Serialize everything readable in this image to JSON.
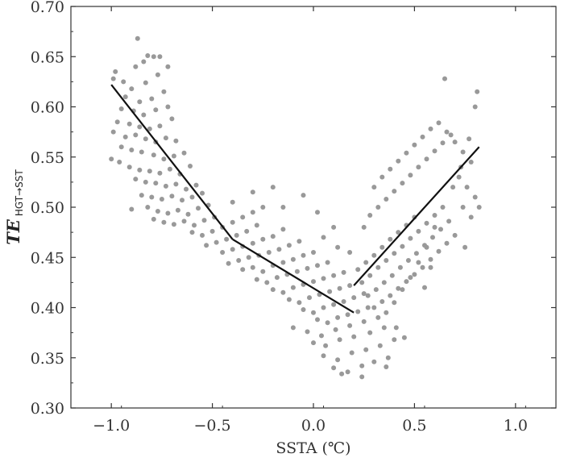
{
  "chart_data": {
    "type": "scatter",
    "title": "",
    "xlabel": "SSTA (℃)",
    "ylabel_main": "TE",
    "ylabel_sub": "HGT→SST",
    "xlim": [
      -1.2,
      1.2
    ],
    "ylim": [
      0.3,
      0.7
    ],
    "x_ticks": [
      -1.0,
      -0.5,
      0.0,
      0.5,
      1.0
    ],
    "x_tick_labels": [
      "−1.0",
      "−0.5",
      "0.0",
      "0.5",
      "1.0"
    ],
    "y_ticks": [
      0.3,
      0.35,
      0.4,
      0.45,
      0.5,
      0.55,
      0.6,
      0.65,
      0.7
    ],
    "y_tick_labels": [
      "0.30",
      "0.35",
      "0.40",
      "0.45",
      "0.50",
      "0.55",
      "0.60",
      "0.65",
      "0.70"
    ],
    "grid": false,
    "point_color": "#999999",
    "line_color": "#111111",
    "fit_segments": [
      {
        "x": [
          -1.0,
          -0.4
        ],
        "y": [
          0.622,
          0.468
        ]
      },
      {
        "x": [
          -0.4,
          0.2
        ],
        "y": [
          0.468,
          0.395
        ]
      },
      {
        "x": [
          0.2,
          0.82
        ],
        "y": [
          0.422,
          0.56
        ]
      }
    ],
    "points": [
      [
        -0.87,
        0.668
      ],
      [
        -0.82,
        0.651
      ],
      [
        -0.79,
        0.65
      ],
      [
        -0.76,
        0.65
      ],
      [
        -0.84,
        0.645
      ],
      [
        -0.88,
        0.64
      ],
      [
        -0.98,
        0.635
      ],
      [
        -0.72,
        0.64
      ],
      [
        -0.94,
        0.625
      ],
      [
        -0.99,
        0.628
      ],
      [
        -0.9,
        0.618
      ],
      [
        -0.83,
        0.624
      ],
      [
        -0.77,
        0.632
      ],
      [
        -0.74,
        0.615
      ],
      [
        -0.93,
        0.61
      ],
      [
        -0.86,
        0.605
      ],
      [
        -0.8,
        0.608
      ],
      [
        -0.95,
        0.598
      ],
      [
        -0.89,
        0.596
      ],
      [
        -0.84,
        0.592
      ],
      [
        -0.78,
        0.597
      ],
      [
        -0.72,
        0.6
      ],
      [
        -0.97,
        0.585
      ],
      [
        -0.91,
        0.583
      ],
      [
        -0.86,
        0.58
      ],
      [
        -0.81,
        0.578
      ],
      [
        -0.76,
        0.581
      ],
      [
        -0.7,
        0.588
      ],
      [
        -0.99,
        0.575
      ],
      [
        -0.93,
        0.57
      ],
      [
        -0.88,
        0.572
      ],
      [
        -0.83,
        0.568
      ],
      [
        -0.78,
        0.565
      ],
      [
        -0.73,
        0.569
      ],
      [
        -0.68,
        0.566
      ],
      [
        -0.95,
        0.56
      ],
      [
        -0.9,
        0.557
      ],
      [
        -0.85,
        0.555
      ],
      [
        -0.79,
        0.552
      ],
      [
        -0.74,
        0.548
      ],
      [
        -0.69,
        0.551
      ],
      [
        -0.64,
        0.554
      ],
      [
        -1.0,
        0.548
      ],
      [
        -0.96,
        0.545
      ],
      [
        -0.91,
        0.54
      ],
      [
        -0.86,
        0.537
      ],
      [
        -0.81,
        0.536
      ],
      [
        -0.76,
        0.534
      ],
      [
        -0.71,
        0.538
      ],
      [
        -0.66,
        0.533
      ],
      [
        -0.61,
        0.541
      ],
      [
        -0.88,
        0.528
      ],
      [
        -0.83,
        0.525
      ],
      [
        -0.78,
        0.524
      ],
      [
        -0.73,
        0.521
      ],
      [
        -0.68,
        0.523
      ],
      [
        -0.63,
        0.518
      ],
      [
        -0.58,
        0.522
      ],
      [
        -0.85,
        0.512
      ],
      [
        -0.8,
        0.51
      ],
      [
        -0.75,
        0.508
      ],
      [
        -0.7,
        0.511
      ],
      [
        -0.65,
        0.507
      ],
      [
        -0.6,
        0.51
      ],
      [
        -0.55,
        0.514
      ],
      [
        -0.9,
        0.498
      ],
      [
        -0.82,
        0.5
      ],
      [
        -0.77,
        0.496
      ],
      [
        -0.72,
        0.494
      ],
      [
        -0.67,
        0.497
      ],
      [
        -0.62,
        0.493
      ],
      [
        -0.57,
        0.499
      ],
      [
        -0.52,
        0.502
      ],
      [
        -0.79,
        0.488
      ],
      [
        -0.74,
        0.485
      ],
      [
        -0.69,
        0.483
      ],
      [
        -0.64,
        0.486
      ],
      [
        -0.59,
        0.482
      ],
      [
        -0.54,
        0.487
      ],
      [
        -0.49,
        0.49
      ],
      [
        -0.6,
        0.475
      ],
      [
        -0.55,
        0.472
      ],
      [
        -0.5,
        0.476
      ],
      [
        -0.45,
        0.48
      ],
      [
        -0.4,
        0.485
      ],
      [
        -0.35,
        0.49
      ],
      [
        -0.3,
        0.495
      ],
      [
        -0.53,
        0.462
      ],
      [
        -0.48,
        0.465
      ],
      [
        -0.43,
        0.468
      ],
      [
        -0.38,
        0.472
      ],
      [
        -0.33,
        0.476
      ],
      [
        -0.28,
        0.482
      ],
      [
        -0.25,
        0.5
      ],
      [
        -0.45,
        0.455
      ],
      [
        -0.4,
        0.458
      ],
      [
        -0.35,
        0.461
      ],
      [
        -0.3,
        0.464
      ],
      [
        -0.25,
        0.468
      ],
      [
        -0.2,
        0.471
      ],
      [
        -0.15,
        0.478
      ],
      [
        -0.42,
        0.444
      ],
      [
        -0.37,
        0.447
      ],
      [
        -0.32,
        0.45
      ],
      [
        -0.27,
        0.452
      ],
      [
        -0.22,
        0.455
      ],
      [
        -0.17,
        0.458
      ],
      [
        -0.12,
        0.462
      ],
      [
        -0.07,
        0.466
      ],
      [
        -0.35,
        0.438
      ],
      [
        -0.3,
        0.44
      ],
      [
        -0.25,
        0.436
      ],
      [
        -0.2,
        0.442
      ],
      [
        -0.15,
        0.445
      ],
      [
        -0.1,
        0.448
      ],
      [
        -0.05,
        0.452
      ],
      [
        0.0,
        0.455
      ],
      [
        -0.28,
        0.428
      ],
      [
        -0.23,
        0.425
      ],
      [
        -0.18,
        0.43
      ],
      [
        -0.13,
        0.433
      ],
      [
        -0.08,
        0.436
      ],
      [
        -0.03,
        0.439
      ],
      [
        0.02,
        0.442
      ],
      [
        0.07,
        0.445
      ],
      [
        -0.2,
        0.418
      ],
      [
        -0.15,
        0.415
      ],
      [
        -0.1,
        0.42
      ],
      [
        -0.05,
        0.423
      ],
      [
        0.0,
        0.426
      ],
      [
        0.05,
        0.429
      ],
      [
        0.1,
        0.432
      ],
      [
        0.15,
        0.435
      ],
      [
        -0.12,
        0.408
      ],
      [
        -0.07,
        0.405
      ],
      [
        -0.02,
        0.41
      ],
      [
        0.03,
        0.413
      ],
      [
        0.08,
        0.416
      ],
      [
        0.13,
        0.419
      ],
      [
        0.18,
        0.422
      ],
      [
        -0.05,
        0.398
      ],
      [
        0.0,
        0.395
      ],
      [
        0.05,
        0.4
      ],
      [
        0.1,
        0.403
      ],
      [
        0.15,
        0.406
      ],
      [
        0.2,
        0.41
      ],
      [
        0.25,
        0.414
      ],
      [
        0.02,
        0.388
      ],
      [
        0.07,
        0.385
      ],
      [
        0.12,
        0.39
      ],
      [
        0.17,
        0.393
      ],
      [
        0.22,
        0.396
      ],
      [
        0.27,
        0.4
      ],
      [
        -0.1,
        0.38
      ],
      [
        -0.03,
        0.376
      ],
      [
        0.04,
        0.372
      ],
      [
        0.11,
        0.378
      ],
      [
        0.18,
        0.382
      ],
      [
        0.25,
        0.386
      ],
      [
        0.32,
        0.39
      ],
      [
        0.0,
        0.365
      ],
      [
        0.06,
        0.362
      ],
      [
        0.13,
        0.368
      ],
      [
        0.2,
        0.371
      ],
      [
        0.28,
        0.375
      ],
      [
        0.35,
        0.38
      ],
      [
        0.05,
        0.352
      ],
      [
        0.12,
        0.348
      ],
      [
        0.19,
        0.355
      ],
      [
        0.26,
        0.358
      ],
      [
        0.33,
        0.362
      ],
      [
        0.4,
        0.368
      ],
      [
        0.1,
        0.34
      ],
      [
        0.17,
        0.336
      ],
      [
        0.24,
        0.342
      ],
      [
        0.3,
        0.346
      ],
      [
        0.37,
        0.35
      ],
      [
        0.24,
        0.331
      ],
      [
        0.36,
        0.341
      ],
      [
        0.14,
        0.334
      ],
      [
        0.05,
        0.47
      ],
      [
        0.12,
        0.46
      ],
      [
        0.18,
        0.455
      ],
      [
        0.1,
        0.48
      ],
      [
        0.02,
        0.495
      ],
      [
        -0.05,
        0.512
      ],
      [
        -0.15,
        0.5
      ],
      [
        -0.3,
        0.515
      ],
      [
        -0.4,
        0.505
      ],
      [
        -0.2,
        0.52
      ],
      [
        0.22,
        0.438
      ],
      [
        0.26,
        0.445
      ],
      [
        0.3,
        0.452
      ],
      [
        0.34,
        0.46
      ],
      [
        0.38,
        0.468
      ],
      [
        0.42,
        0.475
      ],
      [
        0.46,
        0.482
      ],
      [
        0.5,
        0.49
      ],
      [
        0.24,
        0.425
      ],
      [
        0.28,
        0.432
      ],
      [
        0.32,
        0.44
      ],
      [
        0.36,
        0.447
      ],
      [
        0.4,
        0.454
      ],
      [
        0.44,
        0.461
      ],
      [
        0.48,
        0.469
      ],
      [
        0.52,
        0.476
      ],
      [
        0.56,
        0.484
      ],
      [
        0.6,
        0.492
      ],
      [
        0.27,
        0.412
      ],
      [
        0.31,
        0.418
      ],
      [
        0.35,
        0.425
      ],
      [
        0.39,
        0.432
      ],
      [
        0.43,
        0.44
      ],
      [
        0.47,
        0.447
      ],
      [
        0.51,
        0.454
      ],
      [
        0.55,
        0.462
      ],
      [
        0.59,
        0.47
      ],
      [
        0.63,
        0.478
      ],
      [
        0.67,
        0.486
      ],
      [
        0.3,
        0.4
      ],
      [
        0.34,
        0.406
      ],
      [
        0.38,
        0.412
      ],
      [
        0.42,
        0.419
      ],
      [
        0.46,
        0.426
      ],
      [
        0.5,
        0.433
      ],
      [
        0.54,
        0.44
      ],
      [
        0.58,
        0.448
      ],
      [
        0.62,
        0.456
      ],
      [
        0.66,
        0.464
      ],
      [
        0.7,
        0.472
      ],
      [
        0.25,
        0.48
      ],
      [
        0.28,
        0.492
      ],
      [
        0.32,
        0.5
      ],
      [
        0.36,
        0.508
      ],
      [
        0.4,
        0.516
      ],
      [
        0.44,
        0.524
      ],
      [
        0.48,
        0.532
      ],
      [
        0.52,
        0.54
      ],
      [
        0.56,
        0.548
      ],
      [
        0.6,
        0.556
      ],
      [
        0.64,
        0.564
      ],
      [
        0.68,
        0.572
      ],
      [
        0.3,
        0.52
      ],
      [
        0.34,
        0.53
      ],
      [
        0.38,
        0.538
      ],
      [
        0.42,
        0.546
      ],
      [
        0.46,
        0.554
      ],
      [
        0.5,
        0.562
      ],
      [
        0.54,
        0.57
      ],
      [
        0.58,
        0.578
      ],
      [
        0.62,
        0.584
      ],
      [
        0.66,
        0.575
      ],
      [
        0.7,
        0.565
      ],
      [
        0.74,
        0.555
      ],
      [
        0.78,
        0.545
      ],
      [
        0.72,
        0.53
      ],
      [
        0.76,
        0.52
      ],
      [
        0.8,
        0.51
      ],
      [
        0.74,
        0.5
      ],
      [
        0.78,
        0.49
      ],
      [
        0.65,
        0.628
      ],
      [
        0.81,
        0.615
      ],
      [
        0.8,
        0.6
      ],
      [
        0.77,
        0.568
      ],
      [
        0.73,
        0.54
      ],
      [
        0.69,
        0.52
      ],
      [
        0.64,
        0.5
      ],
      [
        0.6,
        0.48
      ],
      [
        0.56,
        0.46
      ],
      [
        0.52,
        0.445
      ],
      [
        0.48,
        0.43
      ],
      [
        0.44,
        0.418
      ],
      [
        0.4,
        0.405
      ],
      [
        0.36,
        0.395
      ],
      [
        0.45,
        0.37
      ],
      [
        0.41,
        0.38
      ],
      [
        0.55,
        0.42
      ],
      [
        0.58,
        0.44
      ],
      [
        0.82,
        0.5
      ],
      [
        0.75,
        0.46
      ]
    ]
  }
}
